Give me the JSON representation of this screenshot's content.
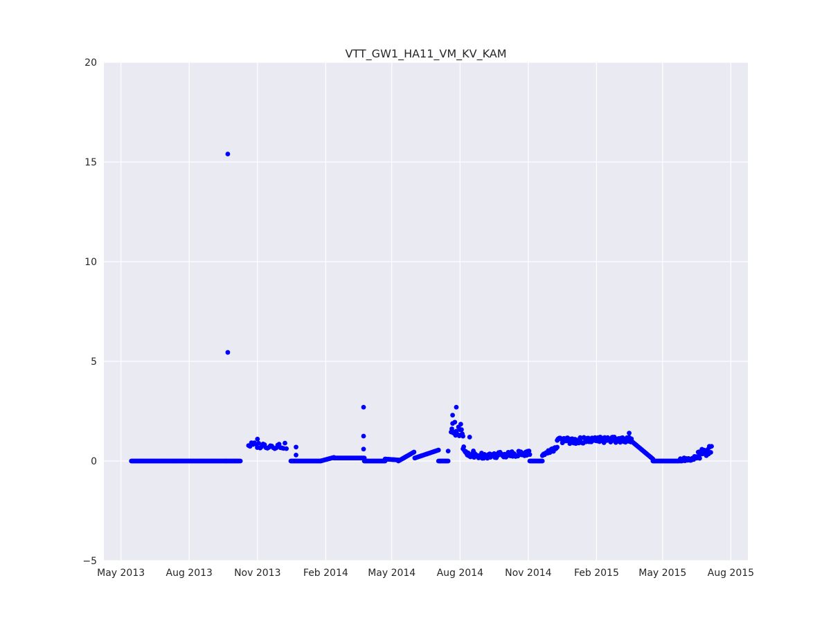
{
  "chart_data": {
    "type": "scatter",
    "title": "VTT_GW1_HA11_VM_KV_KAM",
    "xlabel": "",
    "ylabel": "",
    "xlim": [
      "2013-04-08",
      "2015-08-24"
    ],
    "ylim": [
      -5,
      20
    ],
    "grid": true,
    "colors": {
      "background": "#eaeaf2",
      "grid": "#ffffff",
      "points": "#0000ff"
    },
    "x_ticks": [
      {
        "date": "2013-05-01",
        "label": "May 2013"
      },
      {
        "date": "2013-08-01",
        "label": "Aug 2013"
      },
      {
        "date": "2013-11-01",
        "label": "Nov 2013"
      },
      {
        "date": "2014-02-01",
        "label": "Feb 2014"
      },
      {
        "date": "2014-05-01",
        "label": "May 2014"
      },
      {
        "date": "2014-08-01",
        "label": "Aug 2014"
      },
      {
        "date": "2014-11-01",
        "label": "Nov 2014"
      },
      {
        "date": "2015-02-01",
        "label": "Feb 2015"
      },
      {
        "date": "2015-05-01",
        "label": "May 2015"
      },
      {
        "date": "2015-08-01",
        "label": "Aug 2015"
      }
    ],
    "y_ticks": [
      {
        "value": -5,
        "label": "−5"
      },
      {
        "value": 0,
        "label": "0"
      },
      {
        "value": 5,
        "label": "5"
      },
      {
        "value": 10,
        "label": "10"
      },
      {
        "value": 15,
        "label": "15"
      },
      {
        "value": 20,
        "label": "20"
      }
    ],
    "segments": [
      {
        "from": "2013-05-15",
        "to": "2013-09-20",
        "y0": 0,
        "y1": 0,
        "step": 1
      },
      {
        "from": "2013-09-20",
        "to": "2013-10-09",
        "y0": 0,
        "y1": 0,
        "step": 1
      },
      {
        "from": "2013-10-20",
        "to": "2013-12-10",
        "y0": 0.8,
        "y1": 0.75,
        "step": 2,
        "jitter": 0.15
      },
      {
        "from": "2013-12-16",
        "to": "2014-01-25",
        "y0": 0,
        "y1": 0,
        "step": 1
      },
      {
        "from": "2014-01-25",
        "to": "2014-02-12",
        "y0": 0,
        "y1": 0.18,
        "step": 1
      },
      {
        "from": "2014-02-12",
        "to": "2014-03-25",
        "y0": 0.15,
        "y1": 0.15,
        "step": 1
      },
      {
        "from": "2014-03-25",
        "to": "2014-04-22",
        "y0": 0,
        "y1": 0,
        "step": 1
      },
      {
        "from": "2014-04-22",
        "to": "2014-05-10",
        "y0": 0.1,
        "y1": 0.05,
        "step": 1
      },
      {
        "from": "2014-05-10",
        "to": "2014-05-31",
        "y0": 0,
        "y1": 0.45,
        "step": 1
      },
      {
        "from": "2014-06-01",
        "to": "2014-07-03",
        "y0": 0.15,
        "y1": 0.55,
        "step": 1
      },
      {
        "from": "2014-07-03",
        "to": "2014-07-16",
        "y0": 0,
        "y1": 0,
        "step": 1
      },
      {
        "from": "2014-07-20",
        "to": "2014-08-05",
        "y0": 1.6,
        "y1": 1.5,
        "step": 1,
        "jitter": 0.3
      },
      {
        "from": "2014-08-05",
        "to": "2014-08-20",
        "y0": 0.55,
        "y1": 0.3,
        "step": 1,
        "jitter": 0.2
      },
      {
        "from": "2014-08-20",
        "to": "2014-11-03",
        "y0": 0.25,
        "y1": 0.4,
        "step": 1,
        "jitter": 0.15
      },
      {
        "from": "2014-11-03",
        "to": "2014-11-20",
        "y0": 0,
        "y1": 0,
        "step": 1
      },
      {
        "from": "2014-11-20",
        "to": "2014-12-10",
        "y0": 0.3,
        "y1": 0.65,
        "step": 1,
        "jitter": 0.1
      },
      {
        "from": "2014-12-10",
        "to": "2015-03-20",
        "y0": 1.0,
        "y1": 1.1,
        "step": 1,
        "jitter": 0.15
      },
      {
        "from": "2015-03-20",
        "to": "2015-04-18",
        "y0": 1.0,
        "y1": 0.1,
        "step": 1
      },
      {
        "from": "2015-04-18",
        "to": "2015-05-22",
        "y0": 0,
        "y1": 0,
        "step": 1
      },
      {
        "from": "2015-05-22",
        "to": "2015-06-18",
        "y0": 0.05,
        "y1": 0.15,
        "step": 1,
        "jitter": 0.1
      },
      {
        "from": "2015-06-18",
        "to": "2015-07-06",
        "y0": 0.3,
        "y1": 0.6,
        "step": 1,
        "jitter": 0.25
      }
    ],
    "points": [
      {
        "x": "2013-09-22",
        "y": 15.4
      },
      {
        "x": "2013-09-22",
        "y": 5.45
      },
      {
        "x": "2014-03-24",
        "y": 2.7
      },
      {
        "x": "2014-03-24",
        "y": 1.25
      },
      {
        "x": "2014-03-24",
        "y": 0.6
      },
      {
        "x": "2014-07-16",
        "y": 0.5
      },
      {
        "x": "2014-07-22",
        "y": 2.3
      },
      {
        "x": "2014-07-27",
        "y": 2.7
      },
      {
        "x": "2014-07-25",
        "y": 1.95
      },
      {
        "x": "2014-08-02",
        "y": 1.85
      },
      {
        "x": "2014-08-14",
        "y": 1.2
      },
      {
        "x": "2015-03-17",
        "y": 1.4
      },
      {
        "x": "2013-11-01",
        "y": 1.1
      },
      {
        "x": "2013-12-23",
        "y": 0.7
      },
      {
        "x": "2013-12-23",
        "y": 0.3
      }
    ]
  }
}
